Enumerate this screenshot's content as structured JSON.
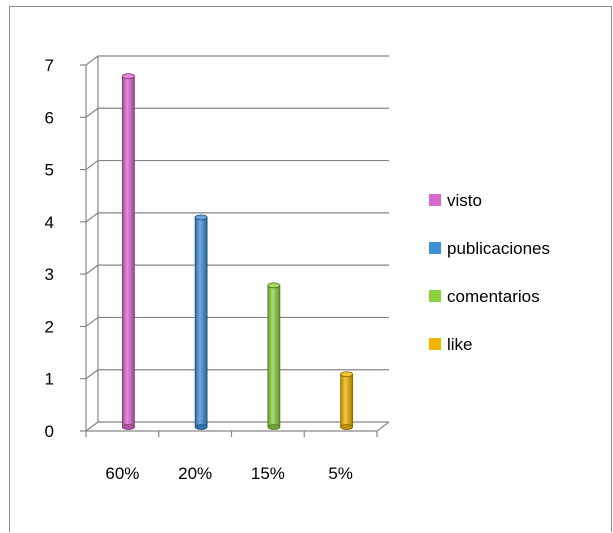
{
  "chart_data": {
    "type": "bar",
    "categories": [
      "60%",
      "20%",
      "15%",
      "5%"
    ],
    "series": [
      {
        "name": "visto",
        "values": [
          6.7,
          null,
          null,
          null
        ],
        "color": "#dd66cc"
      },
      {
        "name": "publicaciones",
        "values": [
          null,
          4.0,
          null,
          null
        ],
        "color": "#3d8fd8"
      },
      {
        "name": "comentarios",
        "values": [
          null,
          null,
          2.7,
          null
        ],
        "color": "#8ed13f"
      },
      {
        "name": "like",
        "values": [
          null,
          null,
          null,
          1.0
        ],
        "color": "#f2b400"
      }
    ],
    "y_ticks": [
      "0",
      "1",
      "2",
      "3",
      "4",
      "5",
      "6",
      "7"
    ],
    "ylim": [
      0,
      7
    ],
    "grid": true,
    "legend_position": "right",
    "style": "3d-cylinder"
  }
}
